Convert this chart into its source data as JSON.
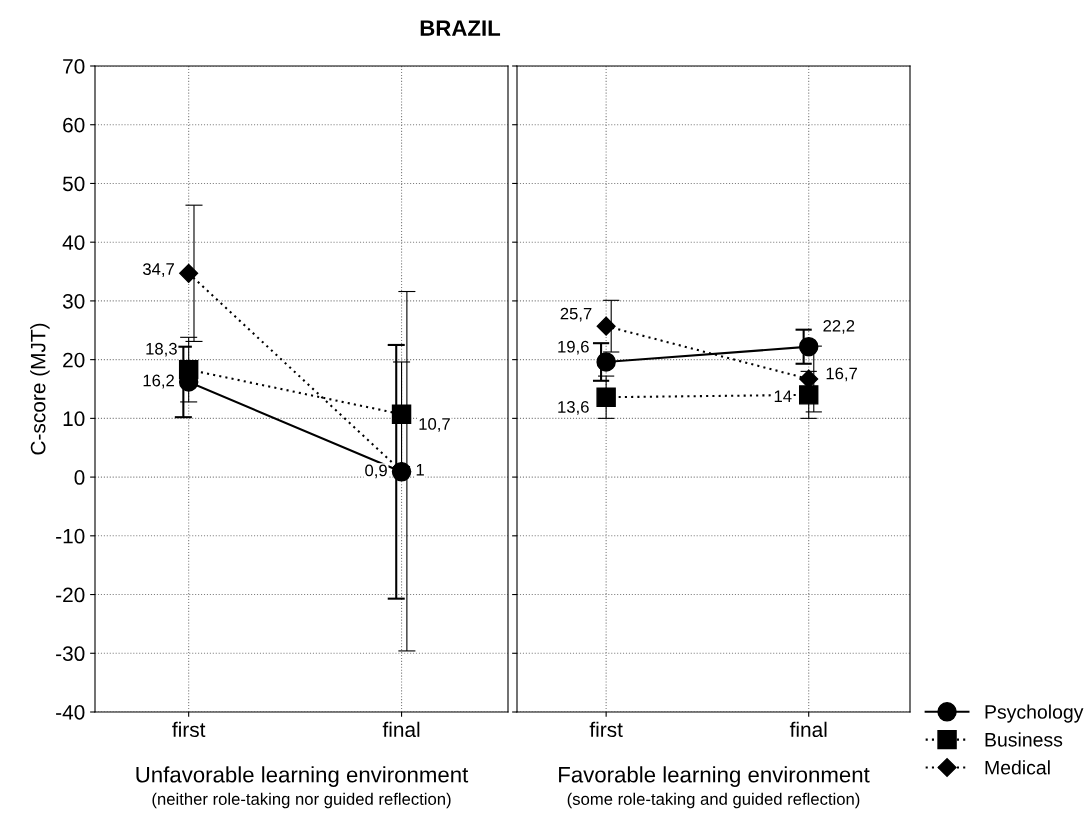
{
  "chart_data": [
    {
      "type": "line",
      "title": "BRAZIL",
      "ylabel": "C-score (MJT)",
      "xlabel": "Unfavorable learning environment",
      "annotations": [
        "(neither role-taking nor guided reflection)"
      ],
      "categories": [
        "first",
        "final"
      ],
      "ylim": [
        -40,
        70
      ],
      "yticks": [
        -40,
        -30,
        -20,
        -10,
        0,
        10,
        20,
        30,
        40,
        50,
        60,
        70
      ],
      "grid": true,
      "series": [
        {
          "color": "#000000",
          "marker": "circle",
          "line_style": "solid",
          "values": [
            16.2,
            0.9
          ],
          "errors": [
            6,
            21.6
          ],
          "value_labels": [
            "16,2",
            "0,9"
          ]
        },
        {
          "color": "#000000",
          "marker": "square",
          "line_style": "dotted",
          "values": [
            18.3,
            10.7
          ],
          "errors": [
            5.5,
            8.9
          ],
          "value_labels": [
            "18,3",
            "10,7"
          ]
        },
        {
          "color": "#000000",
          "marker": "diamond",
          "line_style": "dotted",
          "values": [
            34.7,
            1
          ],
          "errors": [
            11.6,
            30.6
          ],
          "value_labels": [
            "34,7",
            "1"
          ]
        }
      ]
    },
    {
      "type": "line",
      "xlabel": "Favorable learning environment",
      "annotations": [
        "(some role-taking and guided reflection)"
      ],
      "categories": [
        "first",
        "final"
      ],
      "ylim": [
        -40,
        70
      ],
      "yticks": [
        -40,
        -30,
        -20,
        -10,
        0,
        10,
        20,
        30,
        40,
        50,
        60,
        70
      ],
      "tick_labels": "x",
      "grid": true,
      "legend": "bottom right",
      "series": [
        {
          "name": "Psychology",
          "color": "#000000",
          "marker": "circle",
          "line_style": "solid",
          "values": [
            19.6,
            22.2
          ],
          "errors": [
            3.2,
            2.9
          ],
          "value_labels": [
            "19,6",
            "22,2"
          ]
        },
        {
          "name": "Business",
          "color": "#000000",
          "marker": "square",
          "line_style": "dotted",
          "values": [
            13.6,
            14
          ],
          "errors": [
            3.6,
            4
          ],
          "value_labels": [
            "13,6",
            "14"
          ]
        },
        {
          "name": "Medical",
          "color": "#000000",
          "marker": "diamond",
          "line_style": "dotted",
          "values": [
            25.7,
            16.7
          ],
          "errors": [
            4.4,
            5.6
          ],
          "value_labels": [
            "25,7",
            "16,7"
          ]
        }
      ]
    }
  ]
}
